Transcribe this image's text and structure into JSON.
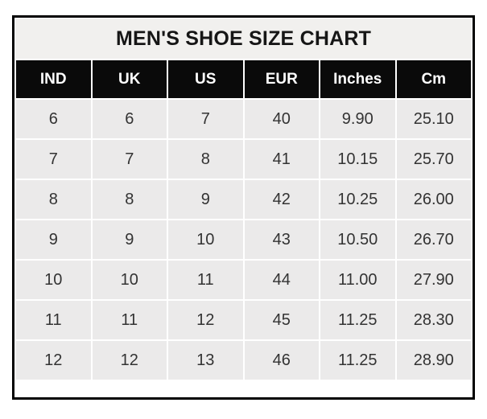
{
  "page": {
    "title": "MEN'S SHOE SIZE CHART"
  },
  "table": {
    "columns": [
      "IND",
      "UK",
      "US",
      "EUR",
      "Inches",
      "Cm"
    ],
    "rows": [
      [
        "6",
        "6",
        "7",
        "40",
        "9.90",
        "25.10"
      ],
      [
        "7",
        "7",
        "8",
        "41",
        "10.15",
        "25.70"
      ],
      [
        "8",
        "8",
        "9",
        "42",
        "10.25",
        "26.00"
      ],
      [
        "9",
        "9",
        "10",
        "43",
        "10.50",
        "26.70"
      ],
      [
        "10",
        "10",
        "11",
        "44",
        "11.00",
        "27.90"
      ],
      [
        "11",
        "11",
        "12",
        "45",
        "11.25",
        "28.30"
      ],
      [
        "12",
        "12",
        "13",
        "46",
        "11.25",
        "28.90"
      ]
    ]
  },
  "colors": {
    "frame_border": "#000000",
    "title_bg": "#f1f0ee",
    "header_bg": "#0a0a0a",
    "header_text": "#ffffff",
    "cell_bg": "#ebeaea",
    "cell_text": "#333333",
    "gridline": "#ffffff",
    "page_bg": "#ffffff"
  },
  "chart_data": {
    "type": "table",
    "title": "MEN'S SHOE SIZE CHART",
    "columns": [
      "IND",
      "UK",
      "US",
      "EUR",
      "Inches",
      "Cm"
    ],
    "rows": [
      [
        6,
        6,
        7,
        40,
        9.9,
        25.1
      ],
      [
        7,
        7,
        8,
        41,
        10.15,
        25.7
      ],
      [
        8,
        8,
        9,
        42,
        10.25,
        26.0
      ],
      [
        9,
        9,
        10,
        43,
        10.5,
        26.7
      ],
      [
        10,
        10,
        11,
        44,
        11.0,
        27.9
      ],
      [
        11,
        11,
        12,
        45,
        11.25,
        28.3
      ],
      [
        12,
        12,
        13,
        46,
        11.25,
        28.9
      ]
    ]
  }
}
